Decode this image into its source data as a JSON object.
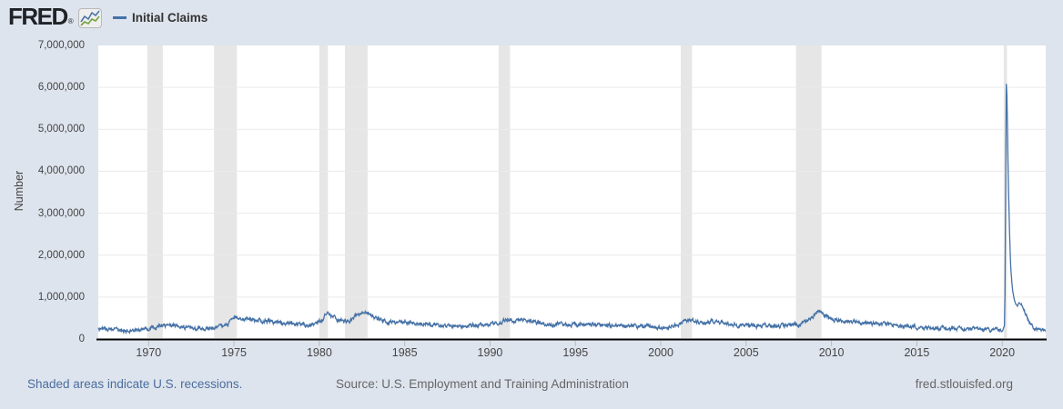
{
  "header": {
    "logo_text": "FRED",
    "logo_registered": "®",
    "legend": {
      "label": "Initial Claims",
      "color": "#4572a7"
    }
  },
  "footer": {
    "recession_note": "Shaded areas indicate U.S. recessions.",
    "source": "Source: U.S. Employment and Training Administration",
    "site": "fred.stlouisfed.org"
  },
  "colors": {
    "background": "#dee4ed",
    "plot_background": "#ffffff",
    "recession_band": "#e6e6e6",
    "gridline": "#eaeaea",
    "series_line": "#4572a7",
    "axis_line": "#000000",
    "tick_mark": "#bbbbbb",
    "tick_label": "#444444",
    "link_text": "#4a6d9e",
    "muted_text": "#666666"
  },
  "chart_data": {
    "type": "line",
    "title": "Initial Claims",
    "ylabel": "Number",
    "xlabel": "",
    "grid": "horizontal",
    "legend_position": "top-left",
    "y_range": [
      0,
      7000000
    ],
    "x_range": [
      1967.05,
      2022.55
    ],
    "y_tick_values": [
      0,
      1000000,
      2000000,
      3000000,
      4000000,
      5000000,
      6000000,
      7000000
    ],
    "y_tick_labels": [
      "0",
      "1,000,000",
      "2,000,000",
      "3,000,000",
      "4,000,000",
      "5,000,000",
      "6,000,000",
      "7,000,000"
    ],
    "x_tick_values": [
      1970,
      1975,
      1980,
      1985,
      1990,
      1995,
      2000,
      2005,
      2010,
      2015,
      2020
    ],
    "x_tick_labels": [
      "1970",
      "1975",
      "1980",
      "1985",
      "1990",
      "1995",
      "2000",
      "2005",
      "2010",
      "2015",
      "2020"
    ],
    "recessions": [
      [
        1969.92,
        1970.83
      ],
      [
        1973.83,
        1975.17
      ],
      [
        1980.0,
        1980.5
      ],
      [
        1981.5,
        1982.83
      ],
      [
        1990.5,
        1991.17
      ],
      [
        2001.17,
        2001.83
      ],
      [
        2007.92,
        2009.42
      ],
      [
        2020.09,
        2020.28
      ]
    ],
    "series": [
      {
        "name": "Initial Claims",
        "color": "#4572a7",
        "points": [
          [
            1967.05,
            240000
          ],
          [
            1967.3,
            255000
          ],
          [
            1967.6,
            230000
          ],
          [
            1967.9,
            220000
          ],
          [
            1968.3,
            215000
          ],
          [
            1968.8,
            200000
          ],
          [
            1969.3,
            200000
          ],
          [
            1969.7,
            205000
          ],
          [
            1969.95,
            225000
          ],
          [
            1970.2,
            280000
          ],
          [
            1970.5,
            300000
          ],
          [
            1970.85,
            330000
          ],
          [
            1971.1,
            310000
          ],
          [
            1971.5,
            295000
          ],
          [
            1972.0,
            280000
          ],
          [
            1972.5,
            265000
          ],
          [
            1973.0,
            250000
          ],
          [
            1973.4,
            240000
          ],
          [
            1973.85,
            270000
          ],
          [
            1974.2,
            310000
          ],
          [
            1974.6,
            350000
          ],
          [
            1974.9,
            450000
          ],
          [
            1975.1,
            555000
          ],
          [
            1975.3,
            530000
          ],
          [
            1975.6,
            480000
          ],
          [
            1976.0,
            450000
          ],
          [
            1976.4,
            440000
          ],
          [
            1976.8,
            430000
          ],
          [
            1977.2,
            415000
          ],
          [
            1977.6,
            400000
          ],
          [
            1978.0,
            370000
          ],
          [
            1978.5,
            350000
          ],
          [
            1979.0,
            345000
          ],
          [
            1979.5,
            355000
          ],
          [
            1979.9,
            390000
          ],
          [
            1980.2,
            470000
          ],
          [
            1980.42,
            615000
          ],
          [
            1980.6,
            570000
          ],
          [
            1980.9,
            490000
          ],
          [
            1981.2,
            445000
          ],
          [
            1981.5,
            425000
          ],
          [
            1981.8,
            460000
          ],
          [
            1982.1,
            540000
          ],
          [
            1982.4,
            590000
          ],
          [
            1982.75,
            665000
          ],
          [
            1983.0,
            580000
          ],
          [
            1983.4,
            480000
          ],
          [
            1983.9,
            420000
          ],
          [
            1984.4,
            390000
          ],
          [
            1985.0,
            395000
          ],
          [
            1985.5,
            390000
          ],
          [
            1986.0,
            380000
          ],
          [
            1986.5,
            350000
          ],
          [
            1987.0,
            325000
          ],
          [
            1987.6,
            305000
          ],
          [
            1988.2,
            300000
          ],
          [
            1988.8,
            315000
          ],
          [
            1989.4,
            330000
          ],
          [
            1990.0,
            345000
          ],
          [
            1990.5,
            375000
          ],
          [
            1990.9,
            430000
          ],
          [
            1991.2,
            465000
          ],
          [
            1991.5,
            435000
          ],
          [
            1991.8,
            445000
          ],
          [
            1992.1,
            455000
          ],
          [
            1992.45,
            420000
          ],
          [
            1992.8,
            390000
          ],
          [
            1993.2,
            365000
          ],
          [
            1993.7,
            345000
          ],
          [
            1994.2,
            340000
          ],
          [
            1994.8,
            330000
          ],
          [
            1995.3,
            360000
          ],
          [
            1995.8,
            355000
          ],
          [
            1996.3,
            345000
          ],
          [
            1996.8,
            330000
          ],
          [
            1997.3,
            315000
          ],
          [
            1997.8,
            305000
          ],
          [
            1998.3,
            300000
          ],
          [
            1998.8,
            295000
          ],
          [
            1999.3,
            290000
          ],
          [
            1999.8,
            280000
          ],
          [
            2000.2,
            270000
          ],
          [
            2000.6,
            290000
          ],
          [
            2000.95,
            330000
          ],
          [
            2001.3,
            390000
          ],
          [
            2001.6,
            420000
          ],
          [
            2001.83,
            460000
          ],
          [
            2002.1,
            420000
          ],
          [
            2002.5,
            405000
          ],
          [
            2002.9,
            415000
          ],
          [
            2003.2,
            425000
          ],
          [
            2003.5,
            410000
          ],
          [
            2003.9,
            370000
          ],
          [
            2004.3,
            345000
          ],
          [
            2004.8,
            335000
          ],
          [
            2005.3,
            330000
          ],
          [
            2005.8,
            320000
          ],
          [
            2006.3,
            305000
          ],
          [
            2006.8,
            315000
          ],
          [
            2007.3,
            310000
          ],
          [
            2007.8,
            330000
          ],
          [
            2008.1,
            360000
          ],
          [
            2008.5,
            420000
          ],
          [
            2008.9,
            510000
          ],
          [
            2009.15,
            640000
          ],
          [
            2009.3,
            655000
          ],
          [
            2009.55,
            570000
          ],
          [
            2009.9,
            490000
          ],
          [
            2010.2,
            470000
          ],
          [
            2010.6,
            460000
          ],
          [
            2011.0,
            420000
          ],
          [
            2011.5,
            410000
          ],
          [
            2012.0,
            380000
          ],
          [
            2012.5,
            370000
          ],
          [
            2013.0,
            350000
          ],
          [
            2013.5,
            340000
          ],
          [
            2014.0,
            325000
          ],
          [
            2014.5,
            305000
          ],
          [
            2015.0,
            285000
          ],
          [
            2015.5,
            275000
          ],
          [
            2016.0,
            265000
          ],
          [
            2016.5,
            260000
          ],
          [
            2017.0,
            245000
          ],
          [
            2017.5,
            240000
          ],
          [
            2018.0,
            225000
          ],
          [
            2018.5,
            215000
          ],
          [
            2019.0,
            220000
          ],
          [
            2019.5,
            215000
          ],
          [
            2019.95,
            212000
          ],
          [
            2020.13,
            250000
          ],
          [
            2020.17,
            1200000
          ],
          [
            2020.2,
            3307000
          ],
          [
            2020.235,
            6137000
          ],
          [
            2020.28,
            5800000
          ],
          [
            2020.35,
            4000000
          ],
          [
            2020.42,
            2700000
          ],
          [
            2020.5,
            1700000
          ],
          [
            2020.6,
            1200000
          ],
          [
            2020.7,
            950000
          ],
          [
            2020.8,
            830000
          ],
          [
            2020.9,
            790000
          ],
          [
            2021.0,
            880000
          ],
          [
            2021.08,
            830000
          ],
          [
            2021.18,
            760000
          ],
          [
            2021.28,
            730000
          ],
          [
            2021.4,
            590000
          ],
          [
            2021.5,
            460000
          ],
          [
            2021.65,
            370000
          ],
          [
            2021.8,
            300000
          ],
          [
            2021.95,
            240000
          ],
          [
            2022.1,
            200000
          ],
          [
            2022.25,
            185000
          ],
          [
            2022.38,
            200000
          ],
          [
            2022.5,
            232000
          ]
        ]
      }
    ]
  }
}
